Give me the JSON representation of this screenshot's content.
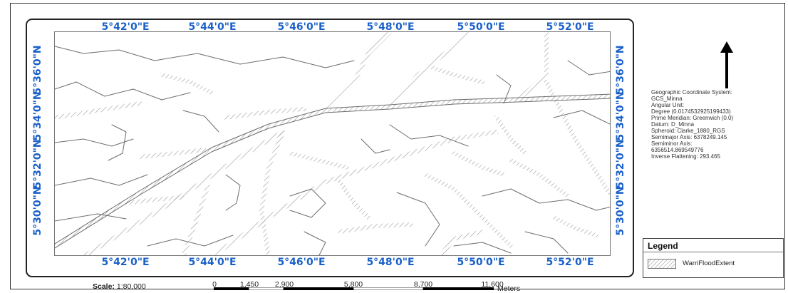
{
  "map": {
    "longitude_labels": [
      "5°42'0\"E",
      "5°44'0\"E",
      "5°46'0\"E",
      "5°48'0\"E",
      "5°50'0\"E",
      "5°52'0\"E"
    ],
    "latitude_labels": [
      "5°36'0\"N",
      "5°34'0\"N",
      "5°32'0\"N",
      "5°30'0\"N"
    ],
    "feature_fill": "hatched grey",
    "line_color": "#6d6d6d",
    "label_color": "#1a60c8"
  },
  "coordinate_info": [
    "Geographic Coordinate System:",
    " GCS_Minna",
    "Angular Unit:",
    "Degree (0.0174532925199433)",
    "Prime Meridian: Greenwich (0.0)",
    "Datum: D_Minna",
    "Spheroid: Clarke_1880_RGS",
    "Semimajor Axis: 6378249.145",
    "Semiminor Axis:",
    "6356514.869549776",
    "Inverse Flattening: 293.465"
  ],
  "legend": {
    "title": "Legend",
    "item": "WarriFloodExtent"
  },
  "scale": {
    "label": "Scale:",
    "ratio": "1:80,000",
    "ticks": [
      "0",
      "1,450",
      "2,900",
      "5,800",
      "8,700",
      "11,600"
    ],
    "unit": "Meters"
  },
  "north_arrow": "north-arrow-icon"
}
